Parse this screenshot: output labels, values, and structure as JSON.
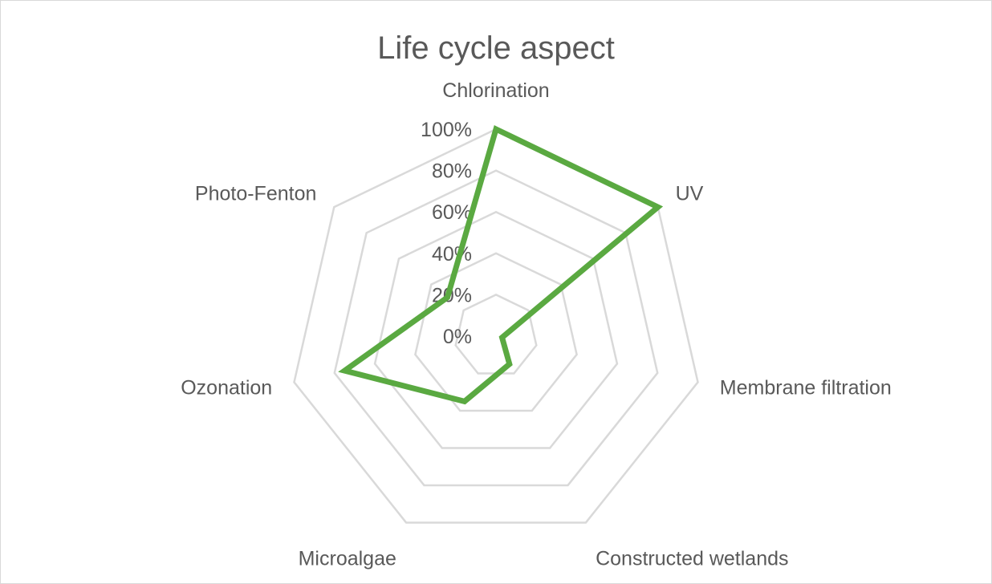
{
  "chart_data": {
    "type": "radar",
    "title": "Life cycle aspect",
    "categories": [
      "Chlorination",
      "UV",
      "Membrane filtration",
      "Constructed wetlands",
      "Microalgae",
      "Ozonation",
      "Photo-Fenton"
    ],
    "series": [
      {
        "values": [
          100,
          100,
          3,
          15,
          35,
          75,
          30
        ],
        "color": "#5aa941"
      }
    ],
    "radial_axis": {
      "min": 0,
      "max": 100,
      "step": 20,
      "tick_labels": [
        "0%",
        "20%",
        "40%",
        "60%",
        "80%",
        "100%"
      ]
    },
    "grid": true,
    "legend": "none",
    "grid_color": "#d9d9d9",
    "text_color": "#595959"
  }
}
